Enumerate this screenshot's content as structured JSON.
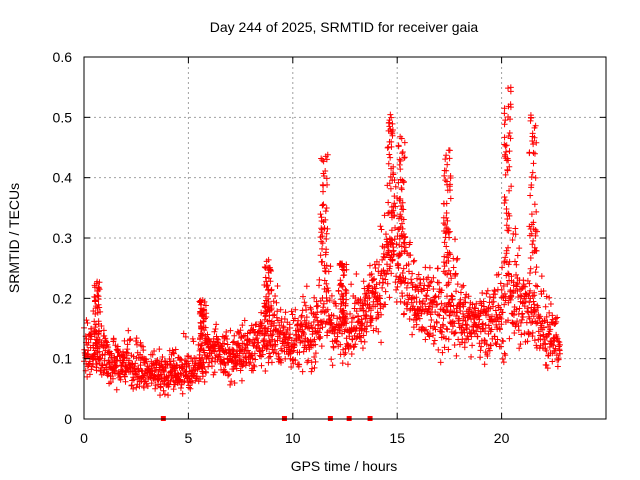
{
  "chart_data": {
    "type": "scatter",
    "title": "Day 244 of 2025, SRMTID for receiver gaia",
    "xlabel": "GPS time / hours",
    "ylabel": "SRMTID / TECUs",
    "xlim": [
      0,
      25
    ],
    "ylim": [
      0,
      0.6
    ],
    "xticks": [
      0,
      5,
      10,
      15,
      20
    ],
    "yticks": [
      0,
      0.1,
      0.2,
      0.3,
      0.4,
      0.5,
      0.6
    ],
    "xtick_labels": [
      "0",
      "5",
      "10",
      "15",
      "20"
    ],
    "ytick_labels": [
      "0",
      "0.1",
      "0.2",
      "0.3",
      "0.4",
      "0.5",
      "0.6"
    ],
    "grid": true,
    "marker": "plus",
    "color": "#ff0000",
    "x_start": 0.0,
    "x_end": 22.8,
    "x_step": 0.0167,
    "note": "Dense cloud of SRMTID samples; envelope values below describe the band of points read off the plot.",
    "envelope": [
      {
        "x": 0,
        "low": 0.06,
        "median": 0.11,
        "high": 0.22
      },
      {
        "x": 1,
        "low": 0.05,
        "median": 0.1,
        "high": 0.2
      },
      {
        "x": 2,
        "low": 0.04,
        "median": 0.09,
        "high": 0.17
      },
      {
        "x": 3,
        "low": 0.03,
        "median": 0.08,
        "high": 0.15
      },
      {
        "x": 4,
        "low": 0.03,
        "median": 0.08,
        "high": 0.14
      },
      {
        "x": 5,
        "low": 0.02,
        "median": 0.08,
        "high": 0.17
      },
      {
        "x": 6,
        "low": 0.05,
        "median": 0.11,
        "high": 0.2
      },
      {
        "x": 7,
        "low": 0.05,
        "median": 0.1,
        "high": 0.17
      },
      {
        "x": 8,
        "low": 0.05,
        "median": 0.12,
        "high": 0.2
      },
      {
        "x": 9,
        "low": 0.07,
        "median": 0.14,
        "high": 0.26
      },
      {
        "x": 10,
        "low": 0.06,
        "median": 0.13,
        "high": 0.22
      },
      {
        "x": 11,
        "low": 0.06,
        "median": 0.14,
        "high": 0.24
      },
      {
        "x": 11.5,
        "low": 0.1,
        "median": 0.2,
        "high": 0.44
      },
      {
        "x": 12,
        "low": 0.06,
        "median": 0.15,
        "high": 0.26
      },
      {
        "x": 13,
        "low": 0.09,
        "median": 0.16,
        "high": 0.25
      },
      {
        "x": 14,
        "low": 0.1,
        "median": 0.2,
        "high": 0.35
      },
      {
        "x": 14.8,
        "low": 0.12,
        "median": 0.28,
        "high": 0.51
      },
      {
        "x": 15.5,
        "low": 0.12,
        "median": 0.22,
        "high": 0.4
      },
      {
        "x": 16,
        "low": 0.1,
        "median": 0.19,
        "high": 0.3
      },
      {
        "x": 17,
        "low": 0.08,
        "median": 0.18,
        "high": 0.3
      },
      {
        "x": 17.5,
        "low": 0.1,
        "median": 0.2,
        "high": 0.46
      },
      {
        "x": 18,
        "low": 0.07,
        "median": 0.17,
        "high": 0.28
      },
      {
        "x": 19,
        "low": 0.06,
        "median": 0.16,
        "high": 0.25
      },
      {
        "x": 20,
        "low": 0.05,
        "median": 0.17,
        "high": 0.32
      },
      {
        "x": 20.3,
        "low": 0.08,
        "median": 0.22,
        "high": 0.56
      },
      {
        "x": 21,
        "low": 0.08,
        "median": 0.18,
        "high": 0.3
      },
      {
        "x": 21.6,
        "low": 0.08,
        "median": 0.2,
        "high": 0.51
      },
      {
        "x": 22,
        "low": 0.05,
        "median": 0.15,
        "high": 0.3
      },
      {
        "x": 22.8,
        "low": 0.08,
        "median": 0.12,
        "high": 0.16
      }
    ],
    "spikes": [
      {
        "x": 0.6,
        "max": 0.23
      },
      {
        "x": 5.7,
        "max": 0.2
      },
      {
        "x": 8.8,
        "max": 0.27
      },
      {
        "x": 11.5,
        "max": 0.44
      },
      {
        "x": 12.4,
        "max": 0.26
      },
      {
        "x": 14.7,
        "max": 0.51
      },
      {
        "x": 15.2,
        "max": 0.47
      },
      {
        "x": 17.4,
        "max": 0.46
      },
      {
        "x": 20.3,
        "max": 0.56
      },
      {
        "x": 21.5,
        "max": 0.51
      }
    ],
    "gap_markers_x": [
      3.8,
      9.6,
      11.8,
      12.7,
      13.7
    ],
    "gap_marker_y": 0
  }
}
